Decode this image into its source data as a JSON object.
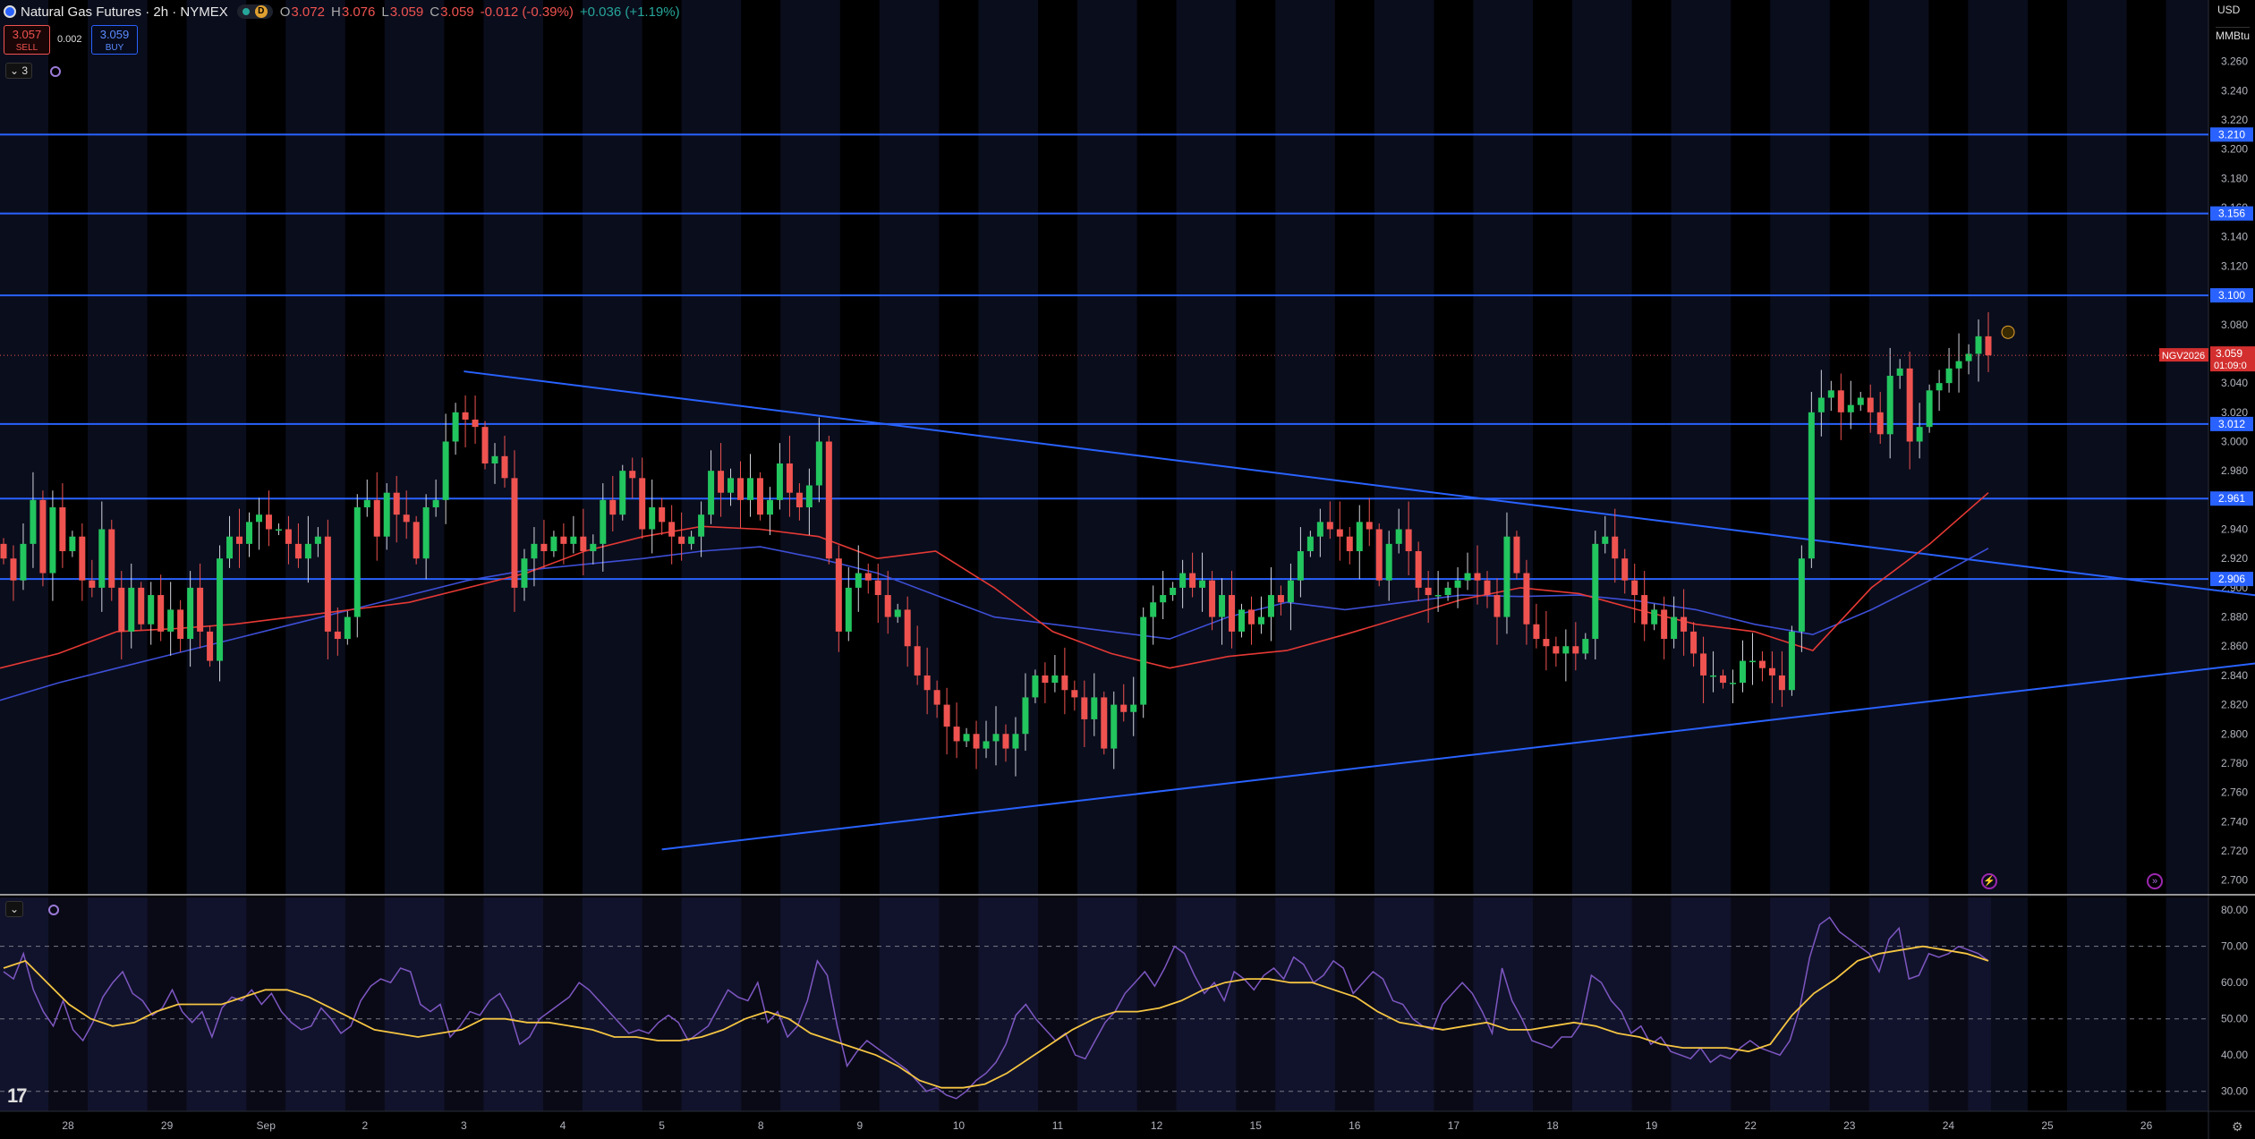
{
  "header": {
    "symbol_title": "Natural Gas Futures · 2h · NYMEX",
    "status_letter": "D",
    "open_label": "O",
    "open": "3.072",
    "high_label": "H",
    "high": "3.076",
    "low_label": "L",
    "low": "3.059",
    "close_label": "C",
    "close": "3.059",
    "change": "-0.012 (-0.39%)",
    "change2": "+0.036 (+1.19%)"
  },
  "trade": {
    "sell_price": "3.057",
    "sell_label": "SELL",
    "spread": "0.002",
    "buy_price": "3.059",
    "buy_label": "BUY"
  },
  "indicators_count": "3",
  "axis": {
    "currency": "USD",
    "unit": "MMBtu"
  },
  "colors": {
    "up": "#26a69a",
    "up_body": "#22c55e",
    "down": "#ef5350",
    "level_line": "#2962ff",
    "ma_red": "#e53935",
    "ma_blue": "#3d4fd6",
    "rsi": "#7e57c2",
    "rsi_ma": "#f5c542"
  },
  "chart_data": [
    {
      "type": "candlestick",
      "title": "Natural Gas Futures",
      "ylim": [
        2.69,
        3.28
      ],
      "yticks": [
        "3.260",
        "3.240",
        "3.220",
        "3.200",
        "3.180",
        "3.160",
        "3.140",
        "3.120",
        "3.080",
        "3.060",
        "3.040",
        "3.020",
        "3.000",
        "2.980",
        "2.960",
        "2.940",
        "2.920",
        "2.900",
        "2.880",
        "2.860",
        "2.840",
        "2.820",
        "2.800",
        "2.780",
        "2.760",
        "2.740",
        "2.720",
        "2.700"
      ],
      "x_labels": [
        "28",
        "29",
        "Sep",
        "2",
        "3",
        "4",
        "5",
        "8",
        "9",
        "10",
        "11",
        "12",
        "15",
        "16",
        "17",
        "18",
        "19",
        "22",
        "23",
        "24",
        "25",
        "26"
      ],
      "horizontal_levels": [
        "3.210",
        "3.156",
        "3.100",
        "3.012",
        "2.961",
        "2.906"
      ],
      "current_price": {
        "symbol": "NGV2026",
        "price": "3.059",
        "countdown": "01:09:0"
      },
      "trendlines": [
        {
          "name": "descending resistance",
          "from": [
            4.0,
            3.048
          ],
          "to": [
            22.2,
            2.894
          ]
        },
        {
          "name": "ascending support",
          "from": [
            6.0,
            2.721
          ],
          "to": [
            22.2,
            2.849
          ]
        }
      ],
      "closes": [
        2.92,
        2.905,
        2.93,
        2.96,
        2.91,
        2.955,
        2.925,
        2.935,
        2.905,
        2.9,
        2.94,
        2.9,
        2.87,
        2.9,
        2.875,
        2.895,
        2.87,
        2.885,
        2.865,
        2.9,
        2.87,
        2.85,
        2.92,
        2.935,
        2.93,
        2.945,
        2.95,
        2.94,
        2.94,
        2.93,
        2.92,
        2.93,
        2.935,
        2.87,
        2.865,
        2.88,
        2.955,
        2.96,
        2.935,
        2.965,
        2.95,
        2.945,
        2.92,
        2.955,
        2.96,
        3.0,
        3.02,
        3.015,
        3.01,
        2.985,
        2.99,
        2.975,
        2.9,
        2.92,
        2.93,
        2.925,
        2.935,
        2.93,
        2.935,
        2.925,
        2.93,
        2.96,
        2.95,
        2.98,
        2.975,
        2.94,
        2.955,
        2.945,
        2.935,
        2.93,
        2.935,
        2.95,
        2.98,
        2.965,
        2.975,
        2.96,
        2.975,
        2.95,
        2.96,
        2.985,
        2.965,
        2.955,
        2.97,
        3.0,
        2.92,
        2.87,
        2.9,
        2.91,
        2.905,
        2.895,
        2.88,
        2.885,
        2.86,
        2.84,
        2.83,
        2.82,
        2.805,
        2.795,
        2.8,
        2.79,
        2.795,
        2.8,
        2.79,
        2.8,
        2.825,
        2.84,
        2.835,
        2.84,
        2.83,
        2.825,
        2.81,
        2.825,
        2.79,
        2.82,
        2.815,
        2.82,
        2.88,
        2.89,
        2.895,
        2.9,
        2.91,
        2.9,
        2.905,
        2.88,
        2.895,
        2.87,
        2.885,
        2.875,
        2.88,
        2.895,
        2.89,
        2.905,
        2.925,
        2.935,
        2.945,
        2.94,
        2.935,
        2.925,
        2.945,
        2.94,
        2.905,
        2.93,
        2.94,
        2.925,
        2.9,
        2.895,
        2.895,
        2.9,
        2.905,
        2.91,
        2.905,
        2.895,
        2.88,
        2.935,
        2.91,
        2.875,
        2.865,
        2.86,
        2.855,
        2.86,
        2.855,
        2.865,
        2.93,
        2.935,
        2.92,
        2.905,
        2.895,
        2.875,
        2.885,
        2.865,
        2.88,
        2.87,
        2.855,
        2.84,
        2.84,
        2.835,
        2.835,
        2.85,
        2.85,
        2.845,
        2.84,
        2.83,
        2.87,
        2.92,
        3.02,
        3.03,
        3.035,
        3.02,
        3.025,
        3.03,
        3.02,
        3.005,
        3.045,
        3.05,
        3.0,
        3.01,
        3.035,
        3.04,
        3.05,
        3.055,
        3.06,
        3.072,
        3.059
      ],
      "sma_red": [
        2.845,
        2.855,
        2.87,
        2.872,
        2.875,
        2.88,
        2.885,
        2.89,
        2.9,
        2.91,
        2.925,
        2.935,
        2.942,
        2.94,
        2.935,
        2.92,
        2.925,
        2.9,
        2.87,
        2.855,
        2.845,
        2.853,
        2.857,
        2.868,
        2.88,
        2.892,
        2.9,
        2.896,
        2.885,
        2.875,
        2.87,
        2.857,
        2.9,
        2.93,
        2.965
      ],
      "sma_blue": [
        2.823,
        2.835,
        2.845,
        2.855,
        2.865,
        2.875,
        2.885,
        2.895,
        2.905,
        2.912,
        2.916,
        2.92,
        2.925,
        2.928,
        2.92,
        2.91,
        2.895,
        2.88,
        2.875,
        2.87,
        2.865,
        2.88,
        2.89,
        2.885,
        2.89,
        2.895,
        2.894,
        2.895,
        2.891,
        2.885,
        2.875,
        2.868,
        2.885,
        2.905,
        2.927
      ]
    },
    {
      "type": "line",
      "title": "RSI",
      "ylim": [
        24.5,
        83.5
      ],
      "yticks": [
        "80.00",
        "70.00",
        "60.00",
        "50.00",
        "40.00",
        "30.00"
      ],
      "levels": [
        70,
        50,
        30
      ],
      "series": [
        {
          "name": "",
          "values": [
            63,
            61,
            68,
            58,
            52,
            48,
            55,
            47,
            44,
            49,
            56,
            60,
            63,
            57,
            55,
            51,
            53,
            58,
            52,
            49,
            52,
            45,
            53,
            56,
            55,
            58,
            54,
            57,
            52,
            49,
            47,
            48,
            53,
            50,
            46,
            48,
            55,
            59,
            61,
            60,
            64,
            63,
            54,
            52,
            54,
            45,
            48,
            52,
            51,
            55,
            57,
            52,
            43,
            45,
            50,
            52,
            54,
            56,
            60,
            58,
            55,
            52,
            49,
            46,
            47,
            46,
            49,
            51,
            49,
            44,
            46,
            48,
            53,
            58,
            56,
            55,
            60,
            49,
            52,
            45,
            48,
            55,
            66,
            62,
            48,
            37,
            41,
            44,
            42,
            40,
            38,
            36,
            33,
            30,
            31,
            29,
            28,
            30,
            33,
            35,
            38,
            43,
            51,
            54,
            50,
            47,
            44,
            46,
            40,
            39,
            44,
            49,
            52,
            57,
            60,
            63,
            59,
            64,
            70,
            68,
            62,
            57,
            60,
            55,
            63,
            61,
            58,
            62,
            64,
            61,
            67,
            65,
            60,
            62,
            66,
            64,
            57,
            60,
            63,
            61,
            55,
            54,
            50,
            48,
            47,
            54,
            57,
            60,
            57,
            52,
            46,
            64,
            55,
            50,
            44,
            43,
            42,
            45,
            45,
            49,
            62,
            60,
            55,
            52,
            46,
            48,
            43,
            45,
            41,
            40,
            39,
            42,
            38,
            40,
            39,
            42,
            44,
            42,
            41,
            40,
            44,
            53,
            67,
            76,
            78,
            74,
            72,
            70,
            68,
            63,
            72,
            75,
            61,
            62,
            68,
            67,
            68,
            70,
            69,
            68,
            66
          ]
        },
        {
          "name": "",
          "values": [
            64,
            66,
            60,
            54,
            50,
            48,
            49,
            52,
            54,
            54,
            54,
            56,
            58,
            58,
            56,
            53,
            50,
            47,
            46,
            45,
            46,
            47,
            50,
            50,
            49,
            49,
            48,
            47,
            45,
            45,
            44,
            44,
            45,
            47,
            50,
            52,
            50,
            46,
            44,
            42,
            40,
            37,
            33,
            31,
            31,
            32,
            35,
            39,
            43,
            47,
            50,
            52,
            52,
            53,
            55,
            58,
            60,
            61,
            61,
            60,
            60,
            58,
            56,
            52,
            49,
            48,
            47,
            48,
            49,
            47,
            47,
            48,
            49,
            48,
            46,
            45,
            43,
            42,
            42,
            42,
            41,
            43,
            51,
            57,
            61,
            66,
            68,
            69,
            70,
            69,
            68,
            66
          ]
        }
      ]
    }
  ]
}
